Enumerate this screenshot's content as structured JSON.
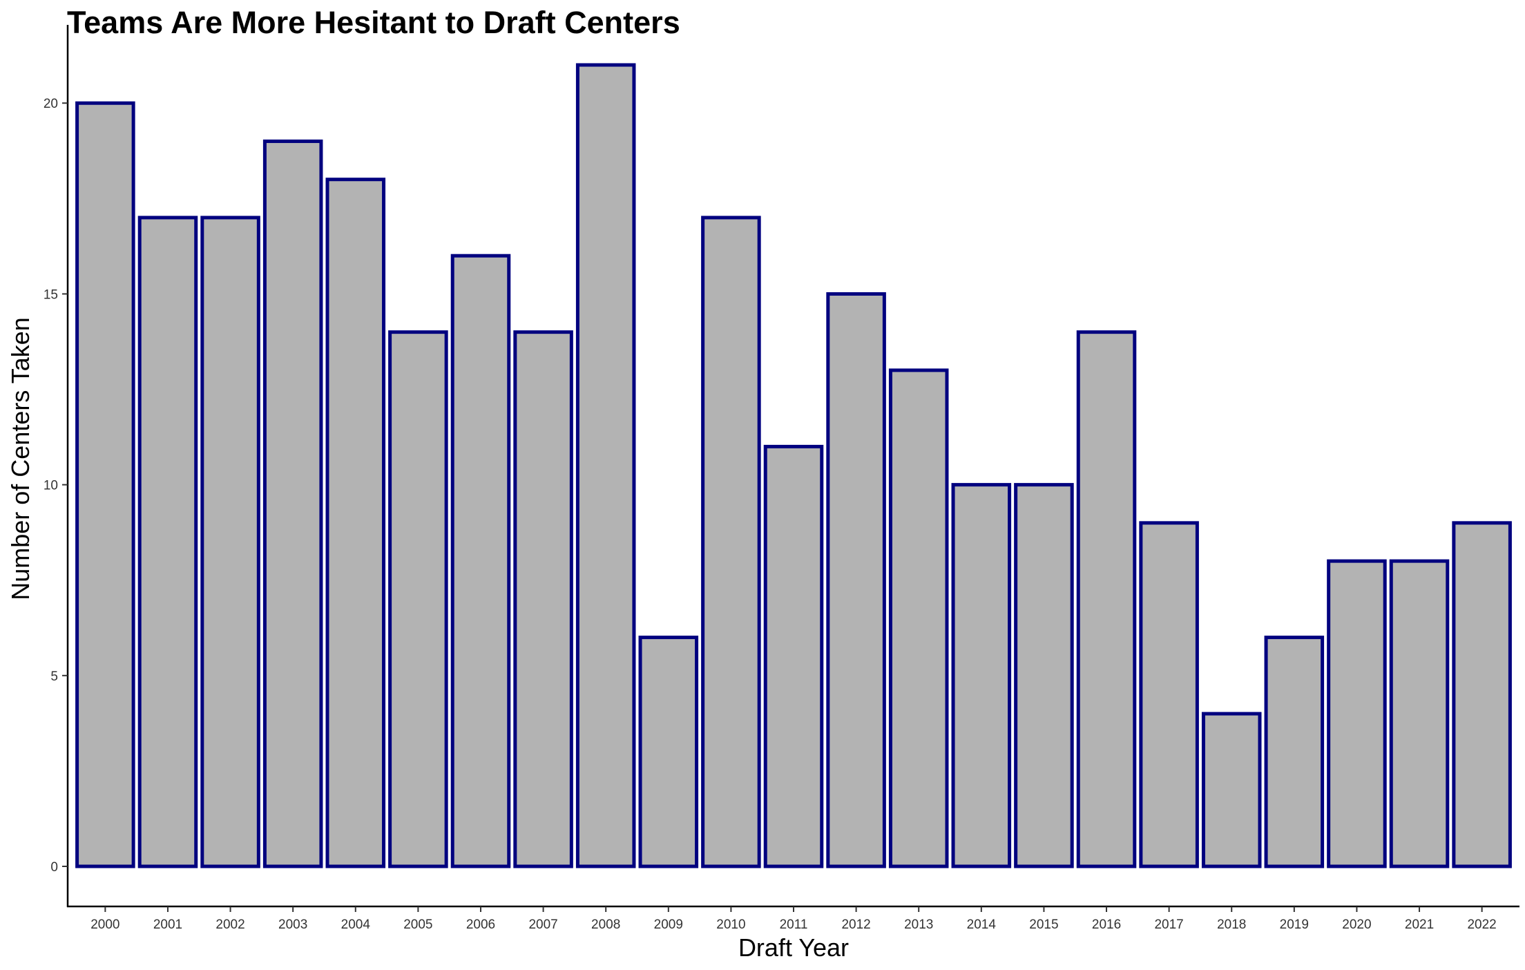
{
  "chart_data": {
    "type": "bar",
    "title": "Teams Are More Hesitant to Draft Centers",
    "xlabel": "Draft Year",
    "ylabel": "Number of Centers Taken",
    "categories": [
      "2000",
      "2001",
      "2002",
      "2003",
      "2004",
      "2005",
      "2006",
      "2007",
      "2008",
      "2009",
      "2010",
      "2011",
      "2012",
      "2013",
      "2014",
      "2015",
      "2016",
      "2017",
      "2018",
      "2019",
      "2020",
      "2021",
      "2022"
    ],
    "values": [
      20,
      17,
      17,
      19,
      18,
      14,
      16,
      14,
      21,
      6,
      17,
      11,
      15,
      13,
      10,
      10,
      14,
      9,
      4,
      6,
      8,
      8,
      9
    ],
    "yticks": [
      0,
      5,
      10,
      15,
      20
    ],
    "ylim": [
      -1.05,
      22.05
    ],
    "grid": false,
    "colors": {
      "bar_fill": "#b3b3b3",
      "bar_stroke": "#00007f",
      "axis": "#000000"
    }
  }
}
